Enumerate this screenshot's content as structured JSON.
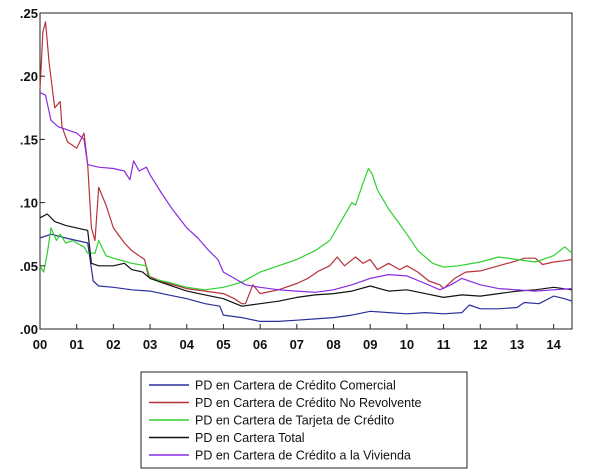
{
  "chart_data": {
    "type": "line",
    "title": "",
    "xlabel": "",
    "ylabel": "",
    "xlim": [
      2000,
      2014.5
    ],
    "ylim": [
      0,
      0.25
    ],
    "grid": false,
    "legend_placement": "bottom-center",
    "x_ticks": [
      {
        "x": 2000,
        "label": "00"
      },
      {
        "x": 2001,
        "label": "01"
      },
      {
        "x": 2002,
        "label": "02"
      },
      {
        "x": 2003,
        "label": "03"
      },
      {
        "x": 2004,
        "label": "04"
      },
      {
        "x": 2005,
        "label": "05"
      },
      {
        "x": 2006,
        "label": "06"
      },
      {
        "x": 2007,
        "label": "07"
      },
      {
        "x": 2008,
        "label": "08"
      },
      {
        "x": 2009,
        "label": "09"
      },
      {
        "x": 2010,
        "label": "10"
      },
      {
        "x": 2011,
        "label": "11"
      },
      {
        "x": 2012,
        "label": "12"
      },
      {
        "x": 2013,
        "label": "13"
      },
      {
        "x": 2014,
        "label": "14"
      }
    ],
    "y_ticks": [
      {
        "y": 0.0,
        "label": ".00"
      },
      {
        "y": 0.05,
        "label": ".05"
      },
      {
        "y": 0.1,
        "label": ".10"
      },
      {
        "y": 0.15,
        "label": ".15"
      },
      {
        "y": 0.2,
        "label": ".20"
      },
      {
        "y": 0.25,
        "label": ".25"
      }
    ],
    "series": [
      {
        "name": "PD en Cartera de Crédito Comercial",
        "color": "#2b2f9a",
        "points": [
          [
            2000,
            0.072
          ],
          [
            2000.3,
            0.075
          ],
          [
            2000.7,
            0.072
          ],
          [
            2001.0,
            0.07
          ],
          [
            2001.3,
            0.068
          ],
          [
            2001.45,
            0.038
          ],
          [
            2001.6,
            0.034
          ],
          [
            2002.0,
            0.033
          ],
          [
            2002.5,
            0.031
          ],
          [
            2003.0,
            0.03
          ],
          [
            2003.5,
            0.027
          ],
          [
            2004.0,
            0.024
          ],
          [
            2004.5,
            0.02
          ],
          [
            2004.9,
            0.018
          ],
          [
            2005.0,
            0.011
          ],
          [
            2005.5,
            0.009
          ],
          [
            2006.0,
            0.006
          ],
          [
            2006.5,
            0.006
          ],
          [
            2007.0,
            0.007
          ],
          [
            2007.5,
            0.008
          ],
          [
            2008.0,
            0.009
          ],
          [
            2008.5,
            0.011
          ],
          [
            2009.0,
            0.014
          ],
          [
            2009.5,
            0.013
          ],
          [
            2010.0,
            0.012
          ],
          [
            2010.5,
            0.013
          ],
          [
            2011.0,
            0.012
          ],
          [
            2011.5,
            0.013
          ],
          [
            2011.7,
            0.019
          ],
          [
            2012.0,
            0.016
          ],
          [
            2012.5,
            0.016
          ],
          [
            2013.0,
            0.017
          ],
          [
            2013.2,
            0.021
          ],
          [
            2013.6,
            0.02
          ],
          [
            2014.0,
            0.026
          ],
          [
            2014.3,
            0.024
          ],
          [
            2014.5,
            0.022
          ]
        ]
      },
      {
        "name": "PD en Cartera de Crédito No Revolvente",
        "color": "#b8323a",
        "points": [
          [
            2000,
            0.19
          ],
          [
            2000.08,
            0.235
          ],
          [
            2000.15,
            0.243
          ],
          [
            2000.25,
            0.21
          ],
          [
            2000.4,
            0.175
          ],
          [
            2000.55,
            0.18
          ],
          [
            2000.6,
            0.16
          ],
          [
            2000.75,
            0.148
          ],
          [
            2001.0,
            0.143
          ],
          [
            2001.2,
            0.155
          ],
          [
            2001.3,
            0.13
          ],
          [
            2001.4,
            0.08
          ],
          [
            2001.5,
            0.07
          ],
          [
            2001.6,
            0.112
          ],
          [
            2001.8,
            0.098
          ],
          [
            2002.0,
            0.08
          ],
          [
            2002.3,
            0.068
          ],
          [
            2002.5,
            0.062
          ],
          [
            2002.7,
            0.058
          ],
          [
            2002.85,
            0.055
          ],
          [
            2002.95,
            0.042
          ],
          [
            2003.2,
            0.039
          ],
          [
            2003.5,
            0.036
          ],
          [
            2004.0,
            0.032
          ],
          [
            2004.5,
            0.03
          ],
          [
            2005.0,
            0.028
          ],
          [
            2005.3,
            0.024
          ],
          [
            2005.5,
            0.02
          ],
          [
            2005.6,
            0.02
          ],
          [
            2005.8,
            0.035
          ],
          [
            2006.0,
            0.028
          ],
          [
            2006.5,
            0.031
          ],
          [
            2007.0,
            0.036
          ],
          [
            2007.3,
            0.04
          ],
          [
            2007.6,
            0.046
          ],
          [
            2007.9,
            0.05
          ],
          [
            2008.1,
            0.057
          ],
          [
            2008.3,
            0.05
          ],
          [
            2008.6,
            0.057
          ],
          [
            2008.8,
            0.052
          ],
          [
            2009.0,
            0.055
          ],
          [
            2009.2,
            0.047
          ],
          [
            2009.5,
            0.052
          ],
          [
            2009.8,
            0.047
          ],
          [
            2010.0,
            0.05
          ],
          [
            2010.3,
            0.045
          ],
          [
            2010.6,
            0.038
          ],
          [
            2010.9,
            0.035
          ],
          [
            2011.0,
            0.032
          ],
          [
            2011.3,
            0.04
          ],
          [
            2011.6,
            0.045
          ],
          [
            2012.0,
            0.046
          ],
          [
            2012.5,
            0.05
          ],
          [
            2013.0,
            0.054
          ],
          [
            2013.2,
            0.056
          ],
          [
            2013.5,
            0.056
          ],
          [
            2013.7,
            0.051
          ],
          [
            2014.0,
            0.053
          ],
          [
            2014.3,
            0.054
          ],
          [
            2014.5,
            0.055
          ]
        ]
      },
      {
        "name": "PD en Cartera de Tarjeta de Crédito",
        "color": "#2fd12f",
        "points": [
          [
            2000,
            0.05
          ],
          [
            2000.1,
            0.045
          ],
          [
            2000.2,
            0.06
          ],
          [
            2000.3,
            0.08
          ],
          [
            2000.45,
            0.07
          ],
          [
            2000.55,
            0.075
          ],
          [
            2000.7,
            0.068
          ],
          [
            2000.9,
            0.07
          ],
          [
            2001.0,
            0.068
          ],
          [
            2001.2,
            0.065
          ],
          [
            2001.3,
            0.06
          ],
          [
            2001.5,
            0.06
          ],
          [
            2001.6,
            0.07
          ],
          [
            2001.8,
            0.058
          ],
          [
            2002.0,
            0.056
          ],
          [
            2002.5,
            0.052
          ],
          [
            2002.9,
            0.05
          ],
          [
            2003.0,
            0.04
          ],
          [
            2003.5,
            0.037
          ],
          [
            2004.0,
            0.033
          ],
          [
            2004.5,
            0.031
          ],
          [
            2005.0,
            0.033
          ],
          [
            2005.5,
            0.037
          ],
          [
            2006.0,
            0.045
          ],
          [
            2006.5,
            0.05
          ],
          [
            2007.0,
            0.055
          ],
          [
            2007.5,
            0.062
          ],
          [
            2007.9,
            0.07
          ],
          [
            2008.2,
            0.085
          ],
          [
            2008.5,
            0.1
          ],
          [
            2008.6,
            0.098
          ],
          [
            2008.8,
            0.115
          ],
          [
            2008.95,
            0.127
          ],
          [
            2009.05,
            0.123
          ],
          [
            2009.2,
            0.11
          ],
          [
            2009.5,
            0.095
          ],
          [
            2009.8,
            0.083
          ],
          [
            2010.0,
            0.075
          ],
          [
            2010.3,
            0.062
          ],
          [
            2010.7,
            0.052
          ],
          [
            2011.0,
            0.049
          ],
          [
            2011.4,
            0.05
          ],
          [
            2012.0,
            0.053
          ],
          [
            2012.5,
            0.057
          ],
          [
            2013.0,
            0.055
          ],
          [
            2013.5,
            0.053
          ],
          [
            2014.0,
            0.058
          ],
          [
            2014.3,
            0.065
          ],
          [
            2014.5,
            0.06
          ]
        ]
      },
      {
        "name": "PD en Cartera Total",
        "color": "#111111",
        "points": [
          [
            2000,
            0.088
          ],
          [
            2000.2,
            0.091
          ],
          [
            2000.4,
            0.085
          ],
          [
            2000.7,
            0.082
          ],
          [
            2001.0,
            0.08
          ],
          [
            2001.3,
            0.078
          ],
          [
            2001.4,
            0.052
          ],
          [
            2001.6,
            0.05
          ],
          [
            2002.0,
            0.05
          ],
          [
            2002.3,
            0.052
          ],
          [
            2002.5,
            0.047
          ],
          [
            2002.8,
            0.045
          ],
          [
            2003.0,
            0.04
          ],
          [
            2003.5,
            0.035
          ],
          [
            2004.0,
            0.03
          ],
          [
            2004.5,
            0.027
          ],
          [
            2005.0,
            0.024
          ],
          [
            2005.5,
            0.018
          ],
          [
            2006.0,
            0.02
          ],
          [
            2006.5,
            0.022
          ],
          [
            2007.0,
            0.025
          ],
          [
            2007.5,
            0.027
          ],
          [
            2008.0,
            0.028
          ],
          [
            2008.5,
            0.03
          ],
          [
            2009.0,
            0.034
          ],
          [
            2009.5,
            0.03
          ],
          [
            2010.0,
            0.031
          ],
          [
            2010.5,
            0.028
          ],
          [
            2011.0,
            0.025
          ],
          [
            2011.5,
            0.027
          ],
          [
            2012.0,
            0.026
          ],
          [
            2012.5,
            0.028
          ],
          [
            2013.0,
            0.03
          ],
          [
            2013.5,
            0.031
          ],
          [
            2014.0,
            0.033
          ],
          [
            2014.5,
            0.031
          ]
        ]
      },
      {
        "name": "PD en Cartera de Crédito a la Vivienda",
        "color": "#8a2be2",
        "points": [
          [
            2000,
            0.187
          ],
          [
            2000.15,
            0.185
          ],
          [
            2000.3,
            0.165
          ],
          [
            2000.5,
            0.16
          ],
          [
            2000.7,
            0.158
          ],
          [
            2001.0,
            0.155
          ],
          [
            2001.2,
            0.15
          ],
          [
            2001.3,
            0.13
          ],
          [
            2001.6,
            0.128
          ],
          [
            2002.0,
            0.127
          ],
          [
            2002.3,
            0.125
          ],
          [
            2002.45,
            0.118
          ],
          [
            2002.55,
            0.133
          ],
          [
            2002.7,
            0.125
          ],
          [
            2002.9,
            0.128
          ],
          [
            2003.0,
            0.122
          ],
          [
            2003.3,
            0.108
          ],
          [
            2003.6,
            0.095
          ],
          [
            2004.0,
            0.08
          ],
          [
            2004.3,
            0.072
          ],
          [
            2004.6,
            0.062
          ],
          [
            2004.85,
            0.055
          ],
          [
            2005.0,
            0.045
          ],
          [
            2005.3,
            0.04
          ],
          [
            2005.6,
            0.035
          ],
          [
            2006.0,
            0.033
          ],
          [
            2006.5,
            0.031
          ],
          [
            2007.0,
            0.03
          ],
          [
            2007.5,
            0.029
          ],
          [
            2008.0,
            0.031
          ],
          [
            2008.5,
            0.035
          ],
          [
            2009.0,
            0.04
          ],
          [
            2009.5,
            0.043
          ],
          [
            2010.0,
            0.042
          ],
          [
            2010.5,
            0.036
          ],
          [
            2010.9,
            0.031
          ],
          [
            2011.2,
            0.035
          ],
          [
            2011.5,
            0.04
          ],
          [
            2012.0,
            0.035
          ],
          [
            2012.5,
            0.032
          ],
          [
            2013.0,
            0.031
          ],
          [
            2013.5,
            0.03
          ],
          [
            2014.0,
            0.031
          ],
          [
            2014.5,
            0.032
          ]
        ]
      }
    ]
  }
}
